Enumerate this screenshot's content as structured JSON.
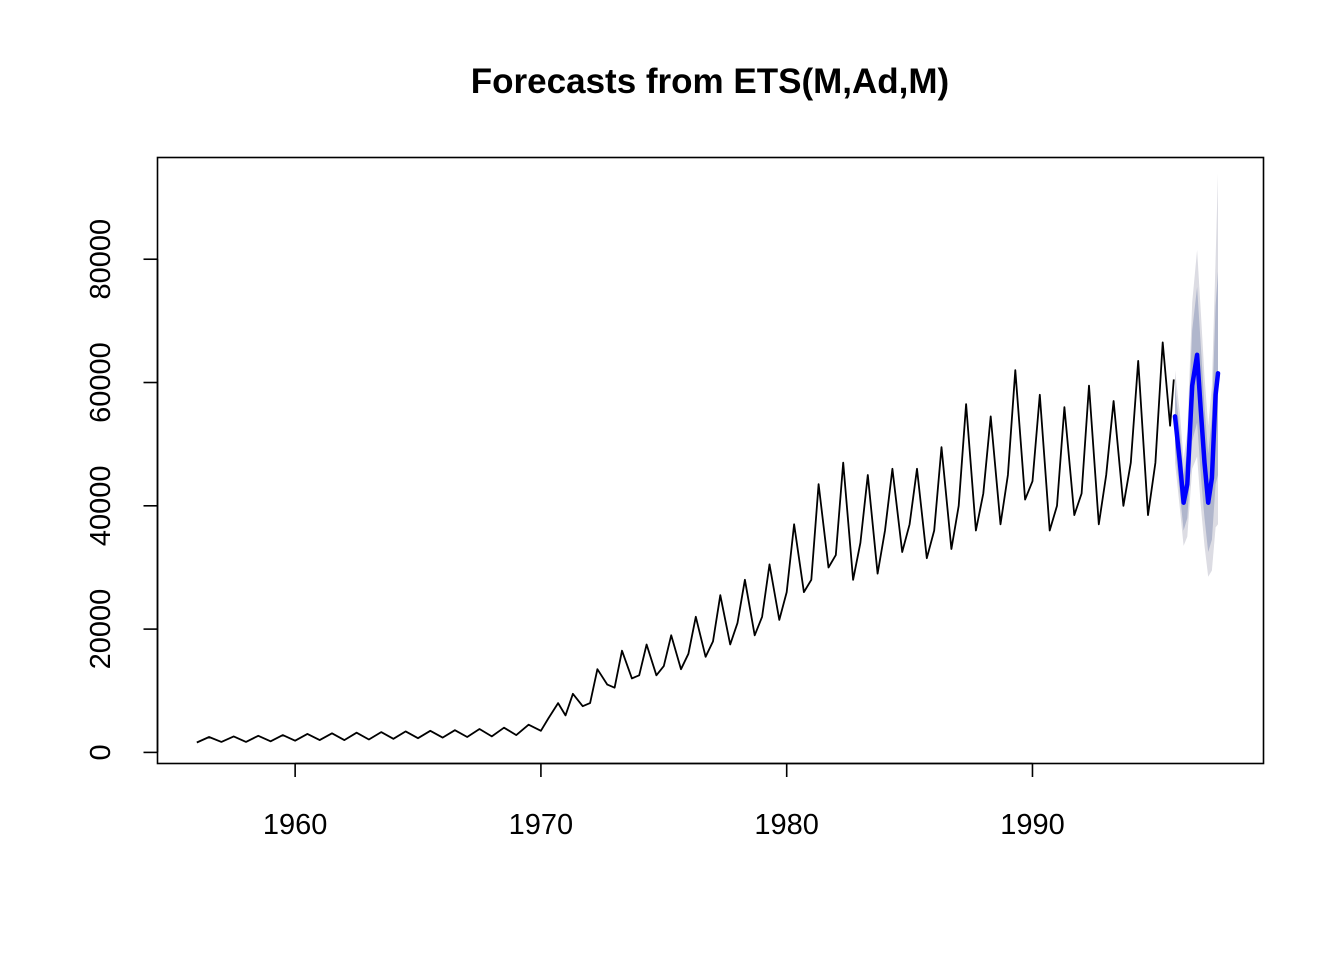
{
  "chart_data": {
    "type": "line",
    "title": "Forecasts from ETS(M,Ad,M)",
    "xlabel": "",
    "ylabel": "",
    "xlim": [
      1954.4,
      1999.4
    ],
    "ylim": [
      -1800,
      96500
    ],
    "x_ticks": [
      1960,
      1970,
      1980,
      1990
    ],
    "y_ticks": [
      0,
      20000,
      40000,
      60000,
      80000
    ],
    "grid": false,
    "legend": "none",
    "colors": {
      "history": "#000000",
      "forecast": "#0000ff",
      "band80": "#b0b6cc",
      "band95": "#dcdce3"
    },
    "history": {
      "x": [
        1956.0,
        1956.5,
        1957.0,
        1957.5,
        1958.0,
        1958.5,
        1959.0,
        1959.5,
        1960.0,
        1960.5,
        1961.0,
        1961.5,
        1962.0,
        1962.5,
        1963.0,
        1963.5,
        1964.0,
        1964.5,
        1965.0,
        1965.5,
        1966.0,
        1966.5,
        1967.0,
        1967.5,
        1968.0,
        1968.5,
        1969.0,
        1969.5,
        1970.0,
        1970.3,
        1970.7,
        1971.0,
        1971.3,
        1971.7,
        1972.0,
        1972.3,
        1972.7,
        1973.0,
        1973.3,
        1973.7,
        1974.0,
        1974.3,
        1974.7,
        1975.0,
        1975.3,
        1975.7,
        1976.0,
        1976.3,
        1976.7,
        1977.0,
        1977.3,
        1977.7,
        1978.0,
        1978.3,
        1978.7,
        1979.0,
        1979.3,
        1979.7,
        1980.0,
        1980.3,
        1980.7,
        1981.0,
        1981.3,
        1981.7,
        1982.0,
        1982.3,
        1982.7,
        1983.0,
        1983.3,
        1983.7,
        1984.0,
        1984.3,
        1984.7,
        1985.0,
        1985.3,
        1985.7,
        1986.0,
        1986.3,
        1986.7,
        1987.0,
        1987.3,
        1987.7,
        1988.0,
        1988.3,
        1988.7,
        1989.0,
        1989.3,
        1989.7,
        1990.0,
        1990.3,
        1990.7,
        1991.0,
        1991.3,
        1991.7,
        1992.0,
        1992.3,
        1992.7,
        1993.0,
        1993.3,
        1993.7,
        1994.0,
        1994.3,
        1994.7,
        1995.0,
        1995.3,
        1995.6,
        1995.75
      ],
      "y": [
        1600,
        2500,
        1700,
        2600,
        1700,
        2700,
        1800,
        2800,
        1900,
        3000,
        2000,
        3100,
        2000,
        3200,
        2100,
        3300,
        2200,
        3400,
        2300,
        3500,
        2400,
        3600,
        2500,
        3800,
        2600,
        4000,
        2800,
        4500,
        3500,
        5500,
        8000,
        6000,
        9500,
        7500,
        8000,
        13500,
        11000,
        10500,
        16500,
        12000,
        12500,
        17500,
        12500,
        14000,
        19000,
        13500,
        16000,
        22000,
        15500,
        18000,
        25500,
        17500,
        21000,
        28000,
        19000,
        22000,
        30500,
        21500,
        26000,
        37000,
        26000,
        28000,
        43500,
        30000,
        32000,
        47000,
        28000,
        34000,
        45000,
        29000,
        36000,
        46000,
        32500,
        37000,
        46000,
        31500,
        36000,
        49500,
        33000,
        40000,
        56500,
        36000,
        42000,
        54500,
        37000,
        45000,
        62000,
        41000,
        44000,
        58000,
        36000,
        40000,
        56000,
        38500,
        42000,
        59500,
        37000,
        45000,
        57000,
        40000,
        47000,
        63500,
        38500,
        47000,
        66500,
        53000,
        60500
      ]
    },
    "forecast": {
      "x": [
        1995.8,
        1996.0,
        1996.15,
        1996.3,
        1996.5,
        1996.7,
        1996.85,
        1997.0,
        1997.15,
        1997.3,
        1997.45,
        1997.55
      ],
      "mean": [
        54500,
        47000,
        40500,
        43500,
        59500,
        64500,
        55500,
        47000,
        40500,
        44500,
        58000,
        61500
      ],
      "lo80": [
        49500,
        42000,
        36000,
        38000,
        50500,
        53500,
        45000,
        38000,
        32500,
        34500,
        43500,
        45000
      ],
      "hi80": [
        59500,
        52000,
        45000,
        49000,
        68500,
        75500,
        66000,
        56000,
        48500,
        54500,
        72500,
        78000
      ],
      "lo95": [
        47000,
        39500,
        33500,
        35000,
        46000,
        48000,
        40000,
        33500,
        28500,
        29500,
        36500,
        37000
      ],
      "hi95": [
        62000,
        55000,
        47500,
        52000,
        73000,
        81500,
        71500,
        61000,
        53000,
        59500,
        80000,
        94000
      ]
    }
  }
}
